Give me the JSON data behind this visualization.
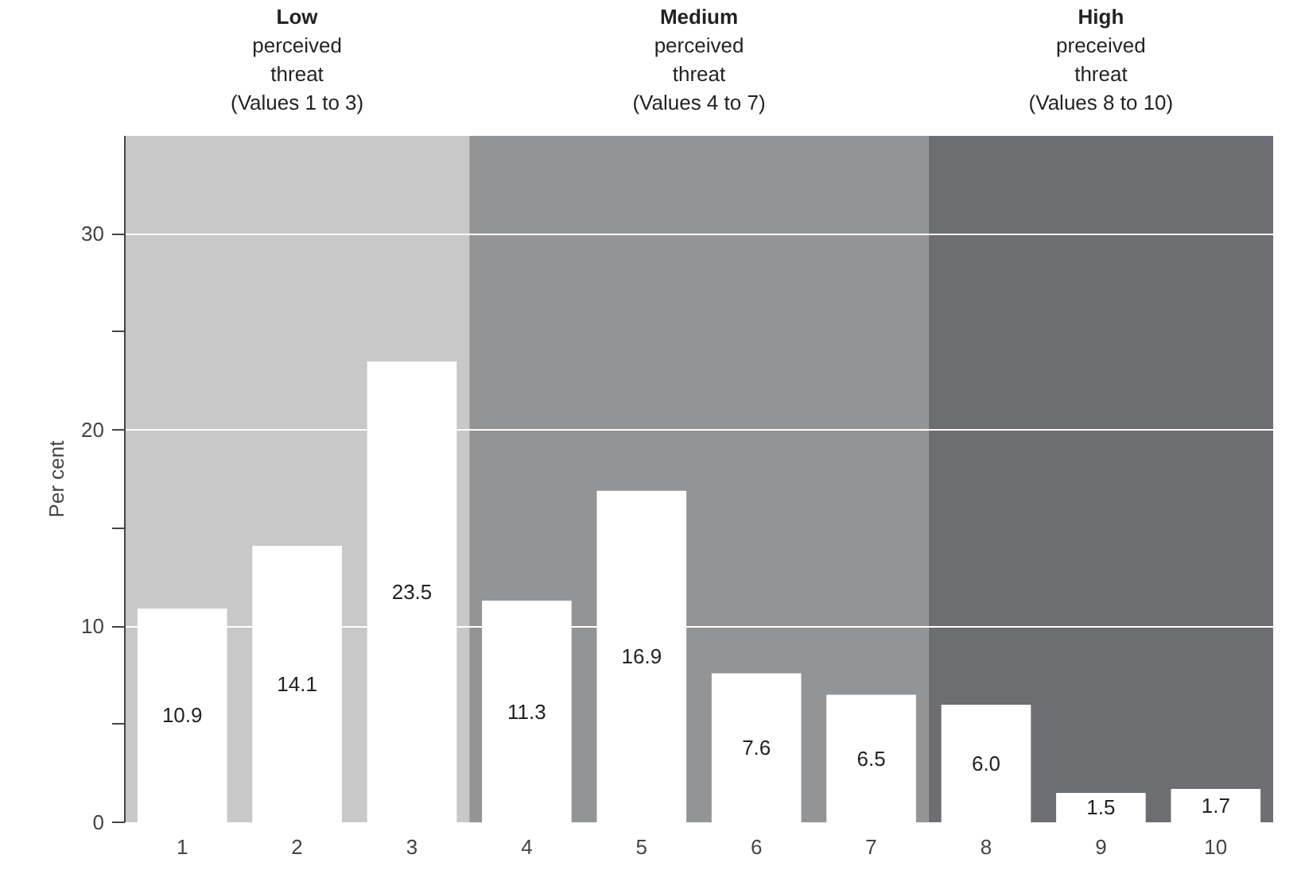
{
  "chart_data": {
    "type": "bar",
    "ylabel": "Per cent",
    "categories": [
      "1",
      "2",
      "3",
      "4",
      "5",
      "6",
      "7",
      "8",
      "9",
      "10"
    ],
    "values": [
      10.9,
      14.1,
      23.5,
      11.3,
      16.9,
      7.6,
      6.5,
      6.0,
      1.5,
      1.7
    ],
    "value_labels": [
      "10.9",
      "14.1",
      "23.5",
      "11.3",
      "16.9",
      "7.6",
      "6.5",
      "6.0",
      "1.5",
      "1.7"
    ],
    "color": "#ffffff",
    "ylim": [
      0,
      35
    ],
    "yticks": [
      0,
      {
        "value": 5,
        "label": null
      },
      10,
      {
        "value": 15,
        "label": null
      },
      20,
      {
        "value": 25,
        "label": null
      },
      30
    ],
    "grid": "y",
    "bands": [
      {
        "axis": "x",
        "from": "1",
        "to": "3",
        "label": "Low\nperceived\nthreat\n(Values 1 to 3)",
        "color": "#c8c8c9"
      },
      {
        "axis": "x",
        "from": "4",
        "to": "7",
        "label": "Medium\nperceived\nthreat\n(Values 4 to 7)",
        "color": "#939496"
      },
      {
        "axis": "x",
        "from": "8",
        "to": "10",
        "label": "High\npreceived\nthreat\n(Values 8 to 10)",
        "color": "#6d6e71"
      }
    ]
  }
}
